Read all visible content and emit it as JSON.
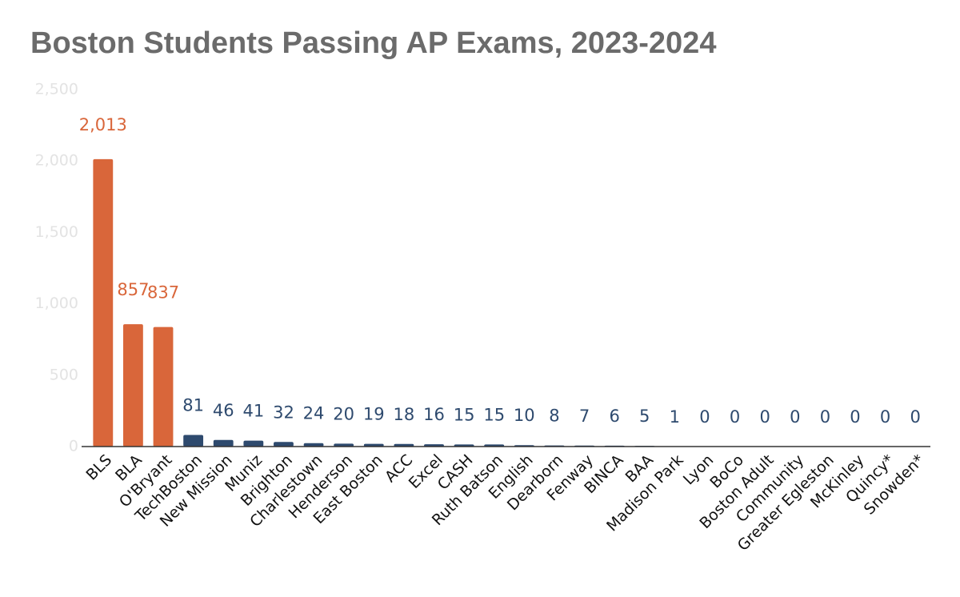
{
  "chart_data": {
    "type": "bar",
    "title": "Boston Students Passing AP Exams, 2023-2024",
    "categories": [
      "BLS",
      "BLA",
      "O'Bryant",
      "TechBoston",
      "New Mission",
      "Muniz",
      "Brighton",
      "Charlestown",
      "Henderson",
      "East Boston",
      "ACC",
      "Excel",
      "CASH",
      "Ruth Batson",
      "English",
      "Dearborn",
      "Fenway",
      "BINCA",
      "BAA",
      "Madison Park",
      "Lyon",
      "BoCo",
      "Boston Adult",
      "Community",
      "Greater Egleston",
      "McKinley",
      "Quincy*",
      "Snowden*"
    ],
    "values": [
      2013,
      857,
      837,
      81,
      46,
      41,
      32,
      24,
      20,
      19,
      18,
      16,
      15,
      15,
      10,
      8,
      7,
      6,
      5,
      1,
      0,
      0,
      0,
      0,
      0,
      0,
      0,
      0
    ],
    "value_labels": [
      "2,013",
      "857",
      "837",
      "81",
      "46",
      "41",
      "32",
      "24",
      "20",
      "19",
      "18",
      "16",
      "15",
      "15",
      "10",
      "8",
      "7",
      "6",
      "5",
      "1",
      "0",
      "0",
      "0",
      "0",
      "0",
      "0",
      "0",
      "0"
    ],
    "colors": [
      "#d9663a",
      "#d9663a",
      "#d9663a",
      "#2e4a6e",
      "#2e4a6e",
      "#2e4a6e",
      "#2e4a6e",
      "#2e4a6e",
      "#2e4a6e",
      "#2e4a6e",
      "#2e4a6e",
      "#2e4a6e",
      "#2e4a6e",
      "#2e4a6e",
      "#2e4a6e",
      "#2e4a6e",
      "#2e4a6e",
      "#2e4a6e",
      "#2e4a6e",
      "#2e4a6e",
      "#2e4a6e",
      "#2e4a6e",
      "#2e4a6e",
      "#2e4a6e",
      "#2e4a6e",
      "#2e4a6e",
      "#2e4a6e",
      "#2e4a6e"
    ],
    "ylim": [
      0,
      2500
    ],
    "yticks": [
      0,
      500,
      {
        "value": 1000,
        "label": "1,000"
      },
      {
        "value": 1500,
        "label": "1,500"
      },
      {
        "value": 2000,
        "label": "2,000"
      },
      {
        "value": 2500,
        "label": "2,500"
      }
    ],
    "grid": false
  }
}
